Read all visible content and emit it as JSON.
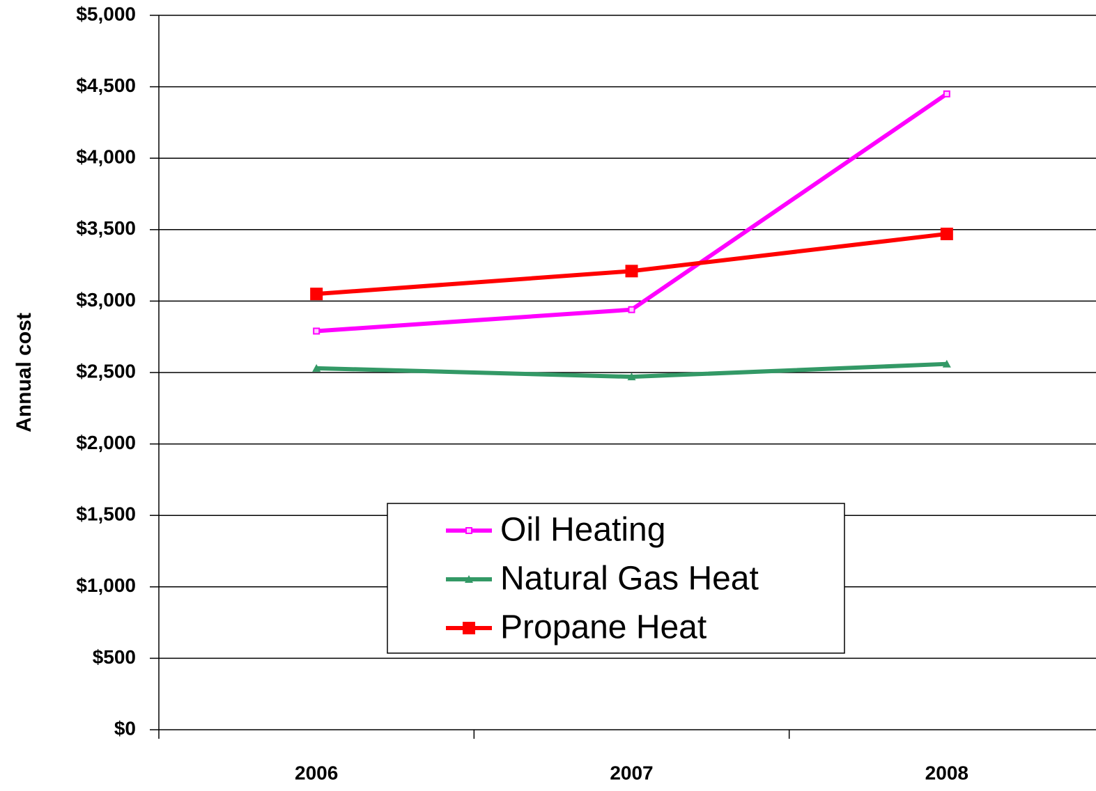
{
  "chart_data": {
    "type": "line",
    "y_label": "Annual cost",
    "categories": [
      "2006",
      "2007",
      "2008"
    ],
    "series": [
      {
        "name": "Oil Heating",
        "color": "#ff00ff",
        "marker": "small-square",
        "values": [
          2790,
          2940,
          4450
        ]
      },
      {
        "name": "Natural Gas Heat",
        "color": "#339966",
        "marker": "triangle",
        "values": [
          2530,
          2470,
          2560
        ]
      },
      {
        "name": "Propane Heat",
        "color": "#ff0000",
        "marker": "square",
        "values": [
          3050,
          3210,
          3470
        ]
      }
    ],
    "ylim": [
      0,
      5000
    ],
    "yticks": [
      {
        "value": 0,
        "label": "$0"
      },
      {
        "value": 500,
        "label": "$500"
      },
      {
        "value": 1000,
        "label": "$1,000"
      },
      {
        "value": 1500,
        "label": "$1,500"
      },
      {
        "value": 2000,
        "label": "$2,000"
      },
      {
        "value": 2500,
        "label": "$2,500"
      },
      {
        "value": 3000,
        "label": "$3,000"
      },
      {
        "value": 3500,
        "label": "$3,500"
      },
      {
        "value": 4000,
        "label": "$4,000"
      },
      {
        "value": 4500,
        "label": "$4,500"
      },
      {
        "value": 5000,
        "label": "$5,000"
      }
    ],
    "grid": true,
    "legend": "lower-center"
  }
}
